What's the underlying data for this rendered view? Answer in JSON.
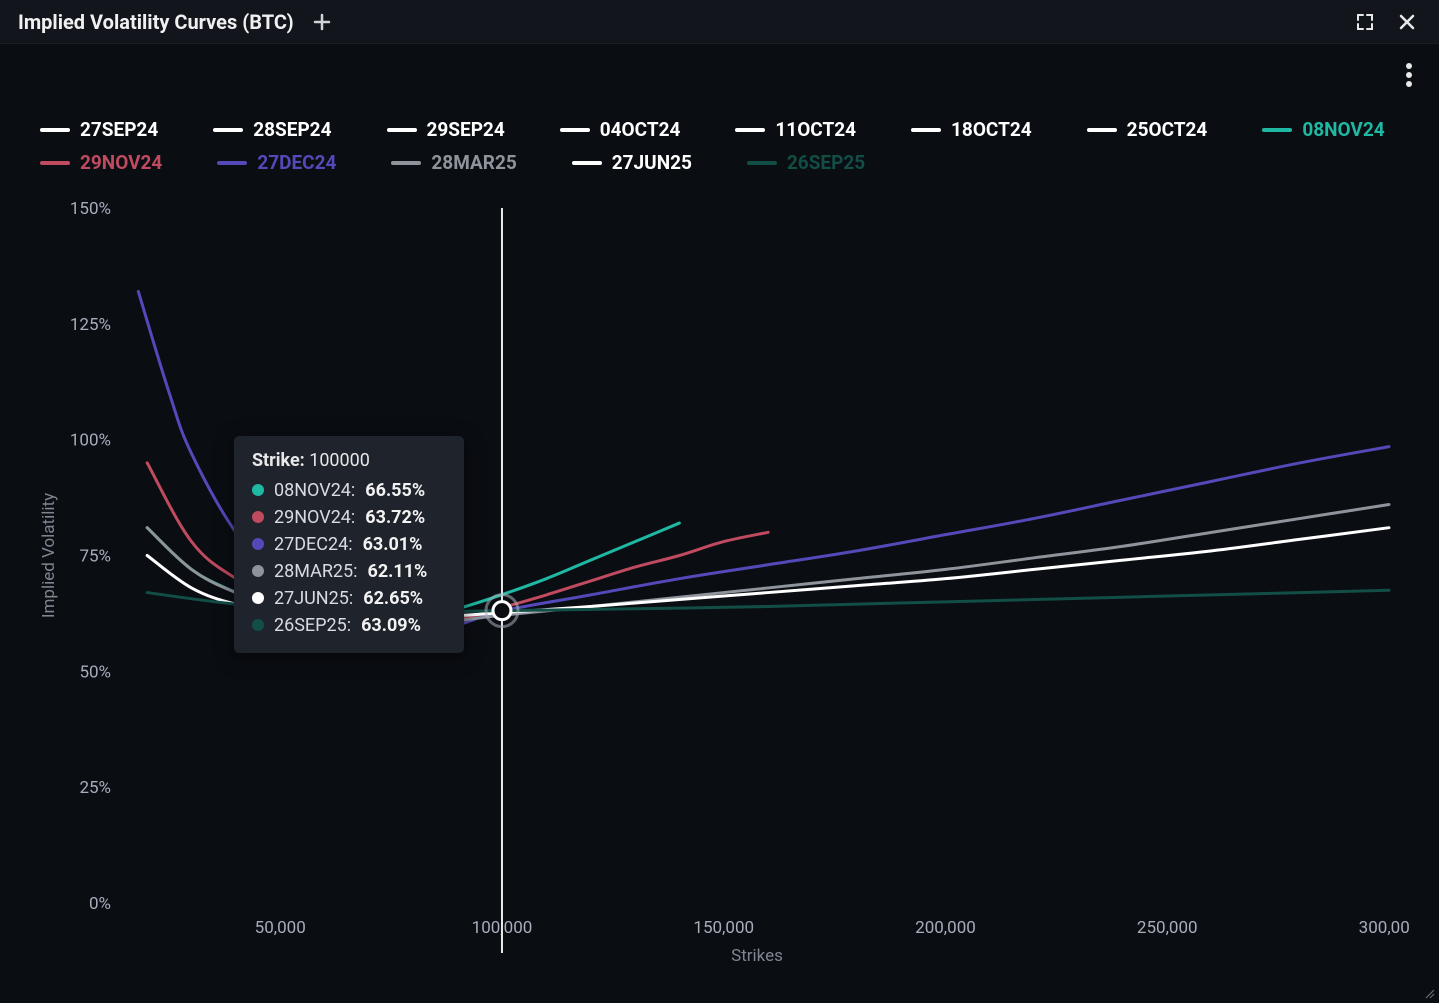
{
  "header": {
    "title": "Implied Volatility Curves (BTC)"
  },
  "chart": {
    "type": "line",
    "background_color": "#0a0d12",
    "grid_color": "#1d2229",
    "axis_text_color": "#a7adbb",
    "axis_label_color": "#7f8591",
    "xlabel": "Strikes",
    "ylabel": "Implied Volatility",
    "xlim": [
      15000,
      300000
    ],
    "ylim": [
      0,
      150
    ],
    "xticks": [
      50000,
      100000,
      150000,
      200000,
      250000,
      300000
    ],
    "xtick_labels": [
      "50,000",
      "100,000",
      "150,000",
      "200,000",
      "250,000",
      "300,000"
    ],
    "yticks": [
      0,
      25,
      50,
      75,
      100,
      125,
      150
    ],
    "ytick_labels": [
      "0%",
      "25%",
      "50%",
      "75%",
      "100%",
      "125%",
      "150%"
    ],
    "line_width": 3,
    "label_fontsize": 17,
    "tick_fontsize": 17,
    "legend_fontsize": 19,
    "legend_position": "top"
  },
  "legend_series": [
    {
      "id": "27SEP24",
      "label": "27SEP24",
      "color": "#ffffff",
      "active": false
    },
    {
      "id": "28SEP24",
      "label": "28SEP24",
      "color": "#ffffff",
      "active": false
    },
    {
      "id": "29SEP24",
      "label": "29SEP24",
      "color": "#ffffff",
      "active": false
    },
    {
      "id": "04OCT24",
      "label": "04OCT24",
      "color": "#ffffff",
      "active": false
    },
    {
      "id": "11OCT24",
      "label": "11OCT24",
      "color": "#ffffff",
      "active": false
    },
    {
      "id": "18OCT24",
      "label": "18OCT24",
      "color": "#ffffff",
      "active": false
    },
    {
      "id": "25OCT24",
      "label": "25OCT24",
      "color": "#ffffff",
      "active": false
    },
    {
      "id": "08NOV24",
      "label": "08NOV24",
      "color": "#1fb8a3",
      "active": true
    },
    {
      "id": "29NOV24",
      "label": "29NOV24",
      "color": "#c04a5f",
      "active": true
    },
    {
      "id": "27DEC24",
      "label": "27DEC24",
      "color": "#5449b8",
      "active": true
    },
    {
      "id": "28MAR25",
      "label": "28MAR25",
      "color": "#8f949c",
      "active": true
    },
    {
      "id": "27JUN25",
      "label": "27JUN25",
      "color": "#ffffff",
      "active": true
    },
    {
      "id": "26SEP25",
      "label": "26SEP25",
      "color": "#124d46",
      "active": true
    }
  ],
  "series": [
    {
      "id": "08NOV24",
      "color": "#1fb8a3",
      "points": [
        [
          20000,
          81
        ],
        [
          30000,
          72
        ],
        [
          40000,
          67
        ],
        [
          50000,
          63
        ],
        [
          60000,
          60.5
        ],
        [
          70000,
          60
        ],
        [
          80000,
          61
        ],
        [
          90000,
          63.5
        ],
        [
          100000,
          66.55
        ],
        [
          110000,
          70
        ],
        [
          120000,
          74
        ],
        [
          130000,
          78
        ],
        [
          140000,
          82
        ]
      ]
    },
    {
      "id": "29NOV24",
      "color": "#c04a5f",
      "points": [
        [
          20000,
          95
        ],
        [
          30000,
          78
        ],
        [
          40000,
          70
        ],
        [
          50000,
          65
        ],
        [
          60000,
          61
        ],
        [
          70000,
          59
        ],
        [
          80000,
          59
        ],
        [
          90000,
          61
        ],
        [
          100000,
          63.72
        ],
        [
          110000,
          66.5
        ],
        [
          120000,
          69.5
        ],
        [
          130000,
          72.5
        ],
        [
          140000,
          75
        ],
        [
          150000,
          78
        ],
        [
          160000,
          80
        ]
      ]
    },
    {
      "id": "27DEC24",
      "color": "#5449b8",
      "points": [
        [
          18000,
          132
        ],
        [
          25000,
          110
        ],
        [
          30000,
          97
        ],
        [
          40000,
          80
        ],
        [
          50000,
          70
        ],
        [
          60000,
          63
        ],
        [
          70000,
          59
        ],
        [
          80000,
          58
        ],
        [
          90000,
          60
        ],
        [
          100000,
          63.01
        ],
        [
          120000,
          66.5
        ],
        [
          140000,
          70
        ],
        [
          160000,
          73
        ],
        [
          180000,
          76
        ],
        [
          200000,
          79.5
        ],
        [
          220000,
          83
        ],
        [
          240000,
          87
        ],
        [
          260000,
          91
        ],
        [
          280000,
          95
        ],
        [
          300000,
          98.5
        ]
      ]
    },
    {
      "id": "28MAR25",
      "color": "#8f949c",
      "points": [
        [
          20000,
          81
        ],
        [
          30000,
          72
        ],
        [
          40000,
          67
        ],
        [
          50000,
          64
        ],
        [
          60000,
          62
        ],
        [
          70000,
          61
        ],
        [
          80000,
          60.5
        ],
        [
          90000,
          61
        ],
        [
          100000,
          62.11
        ],
        [
          120000,
          64
        ],
        [
          140000,
          66
        ],
        [
          160000,
          68
        ],
        [
          180000,
          70
        ],
        [
          200000,
          72
        ],
        [
          220000,
          74.5
        ],
        [
          240000,
          77
        ],
        [
          260000,
          80
        ],
        [
          280000,
          83
        ],
        [
          300000,
          86
        ]
      ]
    },
    {
      "id": "27JUN25",
      "color": "#ffffff",
      "points": [
        [
          20000,
          75
        ],
        [
          30000,
          68
        ],
        [
          40000,
          64.5
        ],
        [
          50000,
          63
        ],
        [
          60000,
          62
        ],
        [
          70000,
          61.5
        ],
        [
          80000,
          61.5
        ],
        [
          90000,
          62
        ],
        [
          100000,
          62.65
        ],
        [
          120000,
          64
        ],
        [
          140000,
          65.5
        ],
        [
          160000,
          67
        ],
        [
          180000,
          68.5
        ],
        [
          200000,
          70
        ],
        [
          220000,
          72
        ],
        [
          240000,
          74
        ],
        [
          260000,
          76
        ],
        [
          280000,
          78.5
        ],
        [
          300000,
          81
        ]
      ]
    },
    {
      "id": "26SEP25",
      "color": "#124d46",
      "points": [
        [
          20000,
          67
        ],
        [
          40000,
          64.5
        ],
        [
          60000,
          63.2
        ],
        [
          80000,
          62.8
        ],
        [
          100000,
          63.09
        ],
        [
          130000,
          63.5
        ],
        [
          160000,
          64
        ],
        [
          200000,
          65
        ],
        [
          240000,
          66
        ],
        [
          280000,
          67
        ],
        [
          300000,
          67.5
        ]
      ]
    }
  ],
  "crosshair": {
    "strike": 100000
  },
  "tooltip": {
    "title_label": "Strike:",
    "title_value": "100000",
    "rows": [
      {
        "name": "08NOV24",
        "value": "66.55%",
        "color": "#1fb8a3"
      },
      {
        "name": "29NOV24",
        "value": "63.72%",
        "color": "#c04a5f"
      },
      {
        "name": "27DEC24",
        "value": "63.01%",
        "color": "#5449b8"
      },
      {
        "name": "28MAR25",
        "value": "62.11%",
        "color": "#8f949c"
      },
      {
        "name": "27JUN25",
        "value": "62.65%",
        "color": "#ffffff"
      },
      {
        "name": "26SEP25",
        "value": "63.09%",
        "color": "#124d46"
      }
    ]
  }
}
